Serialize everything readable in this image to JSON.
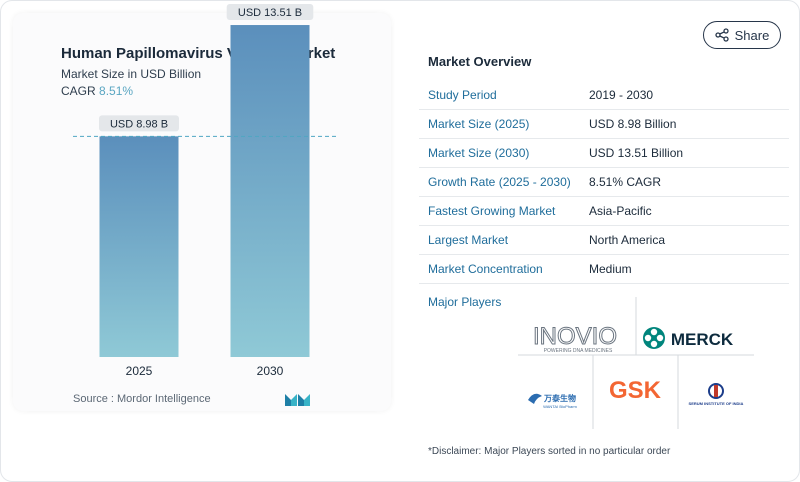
{
  "chart_card": {
    "title": "Human Papillomavirus Vaccine Market",
    "subtitle": "Market Size in USD Billion",
    "cagr_label": "CAGR",
    "cagr_value": "8.51%",
    "source": "Source :  Mordor Intelligence"
  },
  "chart_data": {
    "type": "bar",
    "title": "Human Papillomavirus Vaccine Market",
    "categories": [
      "2025",
      "2030"
    ],
    "values": [
      8.98,
      13.51
    ],
    "data_labels": [
      "USD 8.98 B",
      "USD 13.51 B"
    ],
    "ylabel": "Market Size in USD Billion",
    "ylim": [
      0,
      14
    ],
    "grid": false,
    "reference_line_at": 8.98,
    "bar_color_top": "#5b8fbc",
    "bar_color_bottom": "#8fc9d6"
  },
  "share_button": {
    "label": "Share",
    "icon": "share-icon"
  },
  "overview": {
    "title": "Market Overview",
    "rows": [
      {
        "key": "Study Period",
        "value": "2019 - 2030"
      },
      {
        "key": "Market Size (2025)",
        "value": "USD 8.98 Billion"
      },
      {
        "key": "Market Size (2030)",
        "value": "USD 13.51 Billion"
      },
      {
        "key": "Growth Rate (2025 - 2030)",
        "value": "8.51% CAGR"
      },
      {
        "key": "Fastest Growing Market",
        "value": "Asia-Pacific"
      },
      {
        "key": "Largest Market",
        "value": "North America"
      },
      {
        "key": "Market Concentration",
        "value": "Medium"
      }
    ],
    "players_title": "Major Players",
    "players": {
      "inovio": {
        "name": "INOVIO",
        "tagline": "POWERING DNA MEDICINES"
      },
      "merck": {
        "name": "MERCK"
      },
      "wantai": {
        "name": "万泰生物",
        "tagline": "WANTAI BioPharm"
      },
      "gsk": {
        "name": "GSK"
      },
      "serum": {
        "name": "SERUM INSTITUTE OF INDIA"
      }
    },
    "disclaimer": "*Disclaimer: Major Players sorted in no particular order"
  },
  "colors": {
    "accent": "#1f6d9b",
    "cagr": "#5aa6c2",
    "gsk": "#f36633",
    "merck": "#00857c"
  }
}
